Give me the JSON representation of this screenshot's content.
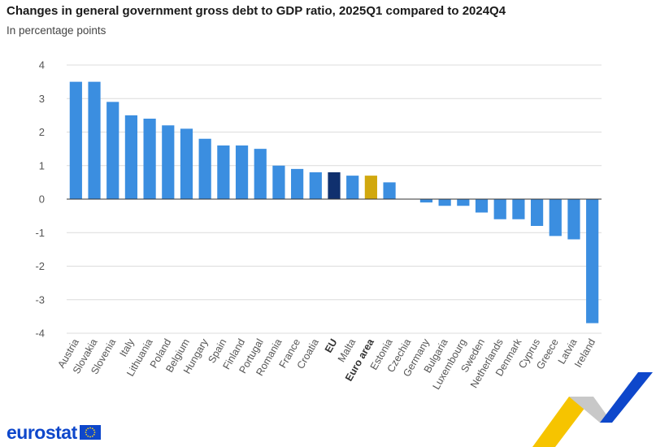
{
  "title": "Changes in general government gross debt to GDP ratio, 2025Q1 compared to 2024Q4",
  "subtitle": "In percentage points",
  "brand": {
    "name": "eurostat"
  },
  "colors": {
    "bar": "#3b8ee0",
    "eu": "#10306e",
    "euro_area": "#d1a80e",
    "grid": "#dcdcdc",
    "axis_text": "#555555"
  },
  "chart_data": {
    "type": "bar",
    "categories": [
      "Austria",
      "Slovakia",
      "Slovenia",
      "Italy",
      "Lithuania",
      "Poland",
      "Belgium",
      "Hungary",
      "Spain",
      "Finland",
      "Portugal",
      "Romania",
      "France",
      "Croatia",
      "EU",
      "Malta",
      "Euro area",
      "Estonia",
      "Czechia",
      "Germany",
      "Bulgaria",
      "Luxembourg",
      "Sweden",
      "Netherlands",
      "Denmark",
      "Cyprus",
      "Greece",
      "Latvia",
      "Ireland"
    ],
    "values": [
      3.5,
      3.5,
      2.9,
      2.5,
      2.4,
      2.2,
      2.1,
      1.8,
      1.6,
      1.6,
      1.5,
      1.0,
      0.9,
      0.8,
      0.8,
      0.7,
      0.7,
      0.5,
      0.0,
      -0.1,
      -0.2,
      -0.2,
      -0.4,
      -0.6,
      -0.6,
      -0.8,
      -1.1,
      -1.2,
      -3.7
    ],
    "highlight": {
      "EU": "eu",
      "Euro area": "euro_area"
    },
    "bold_categories": [
      "EU",
      "Euro area"
    ],
    "ylim": [
      -4,
      4
    ],
    "yticks": [
      4,
      3,
      2,
      1,
      0,
      -1,
      -2,
      -3,
      -4
    ],
    "ytick_labels": [
      "4",
      "3",
      "2",
      "1",
      "0",
      "-1",
      "-2",
      "-3",
      "-4"
    ],
    "xlabel": "",
    "ylabel": "",
    "grid": true
  }
}
